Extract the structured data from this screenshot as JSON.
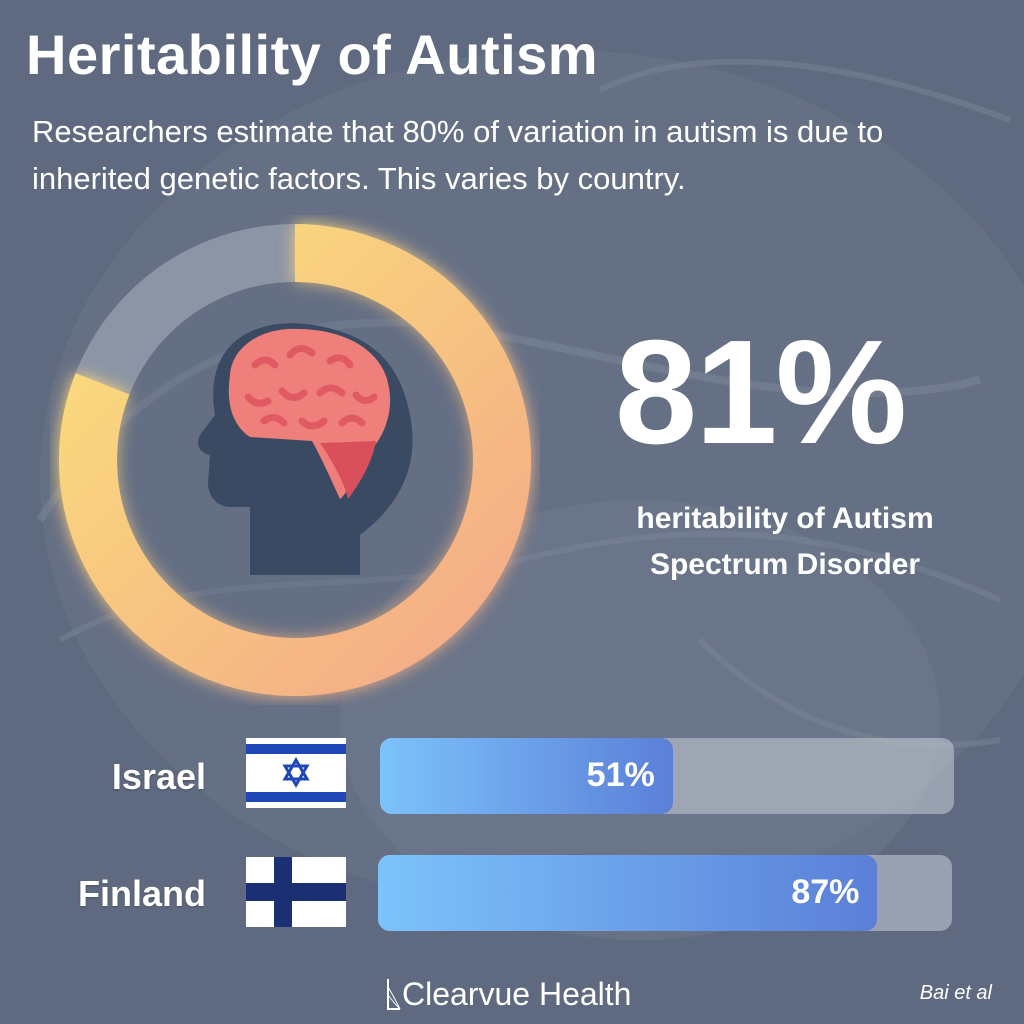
{
  "title": "Heritability of Autism",
  "subtitle": "Researchers estimate that 80% of variation in autism is due to inherited genetic factors. This varies by country.",
  "headline": {
    "value": "81%",
    "caption_line1": "heritability of Autism",
    "caption_line2": "Spectrum Disorder"
  },
  "brand": "Clearvue Health",
  "source": "Bai et al",
  "colors": {
    "ring_start": "#fbe07c",
    "ring_end": "#f3a987",
    "ring_track": "#9aa1b0",
    "brain": "#ef7f7a",
    "head": "#3b4a63",
    "bar_start": "#7cc3fb",
    "bar_end": "#5b7fd8"
  },
  "icons": {
    "center": "head-brain-icon",
    "flag_1": "israel-flag-icon",
    "flag_2": "finland-flag-icon",
    "logo": "clearvue-logo-icon"
  },
  "chart_data": [
    {
      "type": "pie",
      "style": "donut",
      "value": 81,
      "max": 100,
      "label": "81%"
    },
    {
      "type": "bar",
      "orientation": "horizontal",
      "categories": [
        "Israel",
        "Finland"
      ],
      "values": [
        51,
        87
      ],
      "value_labels": [
        "51%",
        "87%"
      ],
      "xlim": [
        0,
        100
      ]
    }
  ]
}
